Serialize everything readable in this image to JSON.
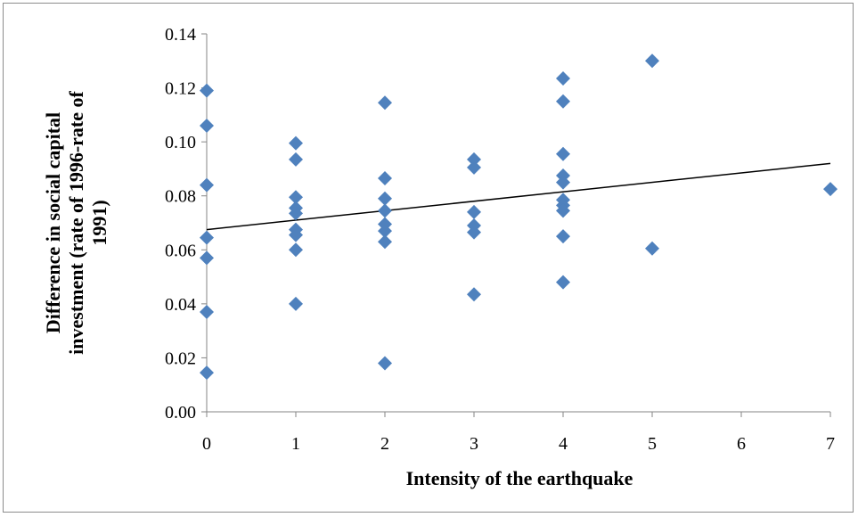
{
  "chart_data": {
    "type": "scatter",
    "title": "",
    "xlabel": "Intensity of the earthquake",
    "ylabel": [
      "Difference in social capital",
      "investment (rate of 1996-rate of",
      "1991)"
    ],
    "xlim": [
      0,
      7
    ],
    "ylim": [
      0,
      0.14
    ],
    "x_ticks": [
      "0",
      "1",
      "2",
      "3",
      "4",
      "5",
      "6",
      "7"
    ],
    "y_ticks": [
      "0.00",
      "0.02",
      "0.04",
      "0.06",
      "0.08",
      "0.10",
      "0.12",
      "0.14"
    ],
    "grid": false,
    "legend": "none",
    "marker_color": "#4f81bd",
    "trendline": {
      "type": "linear",
      "x": [
        0,
        7
      ],
      "y": [
        0.0675,
        0.092
      ],
      "color": "#000000"
    },
    "points": [
      {
        "x": 0,
        "y": 0.119
      },
      {
        "x": 0,
        "y": 0.106
      },
      {
        "x": 0,
        "y": 0.084
      },
      {
        "x": 0,
        "y": 0.0645
      },
      {
        "x": 0,
        "y": 0.057
      },
      {
        "x": 0,
        "y": 0.037
      },
      {
        "x": 0,
        "y": 0.0145
      },
      {
        "x": 1,
        "y": 0.0995
      },
      {
        "x": 1,
        "y": 0.0935
      },
      {
        "x": 1,
        "y": 0.0795
      },
      {
        "x": 1,
        "y": 0.0755
      },
      {
        "x": 1,
        "y": 0.0735
      },
      {
        "x": 1,
        "y": 0.0675
      },
      {
        "x": 1,
        "y": 0.0655
      },
      {
        "x": 1,
        "y": 0.06
      },
      {
        "x": 1,
        "y": 0.04
      },
      {
        "x": 2,
        "y": 0.1145
      },
      {
        "x": 2,
        "y": 0.0865
      },
      {
        "x": 2,
        "y": 0.079
      },
      {
        "x": 2,
        "y": 0.0745
      },
      {
        "x": 2,
        "y": 0.0695
      },
      {
        "x": 2,
        "y": 0.067
      },
      {
        "x": 2,
        "y": 0.063
      },
      {
        "x": 2,
        "y": 0.018
      },
      {
        "x": 3,
        "y": 0.0935
      },
      {
        "x": 3,
        "y": 0.0905
      },
      {
        "x": 3,
        "y": 0.074
      },
      {
        "x": 3,
        "y": 0.069
      },
      {
        "x": 3,
        "y": 0.0665
      },
      {
        "x": 3,
        "y": 0.0435
      },
      {
        "x": 4,
        "y": 0.1235
      },
      {
        "x": 4,
        "y": 0.115
      },
      {
        "x": 4,
        "y": 0.0955
      },
      {
        "x": 4,
        "y": 0.0875
      },
      {
        "x": 4,
        "y": 0.085
      },
      {
        "x": 4,
        "y": 0.0785
      },
      {
        "x": 4,
        "y": 0.0765
      },
      {
        "x": 4,
        "y": 0.0745
      },
      {
        "x": 4,
        "y": 0.065
      },
      {
        "x": 4,
        "y": 0.048
      },
      {
        "x": 5,
        "y": 0.13
      },
      {
        "x": 5,
        "y": 0.0605
      },
      {
        "x": 7,
        "y": 0.0825
      }
    ]
  }
}
